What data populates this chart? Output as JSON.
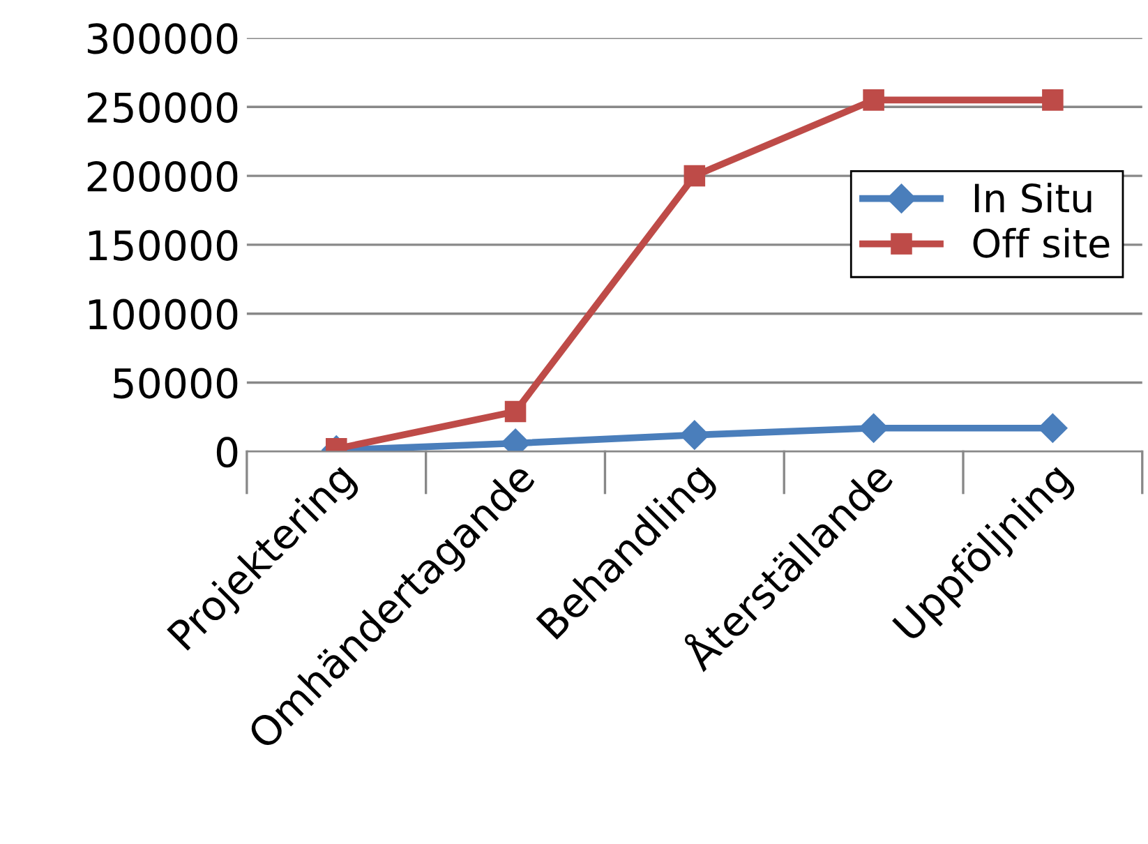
{
  "chart_data": {
    "type": "line",
    "categories": [
      "Projektering",
      "Omhändertagande",
      "Behandling",
      "Återställande",
      "Uppföljning"
    ],
    "series": [
      {
        "name": "In Situ",
        "color": "#4a7ebb",
        "values": [
          1000,
          6000,
          12000,
          17000,
          17000
        ],
        "marker": "diamond"
      },
      {
        "name": "Off site",
        "color": "#be4b48",
        "values": [
          2000,
          29000,
          200000,
          255000,
          255000
        ],
        "marker": "square"
      }
    ],
    "ylim": [
      0,
      300000
    ],
    "yticks": [
      0,
      50000,
      100000,
      150000,
      200000,
      250000,
      300000
    ],
    "grid": "y",
    "legend": "right",
    "line_style": "solid"
  }
}
